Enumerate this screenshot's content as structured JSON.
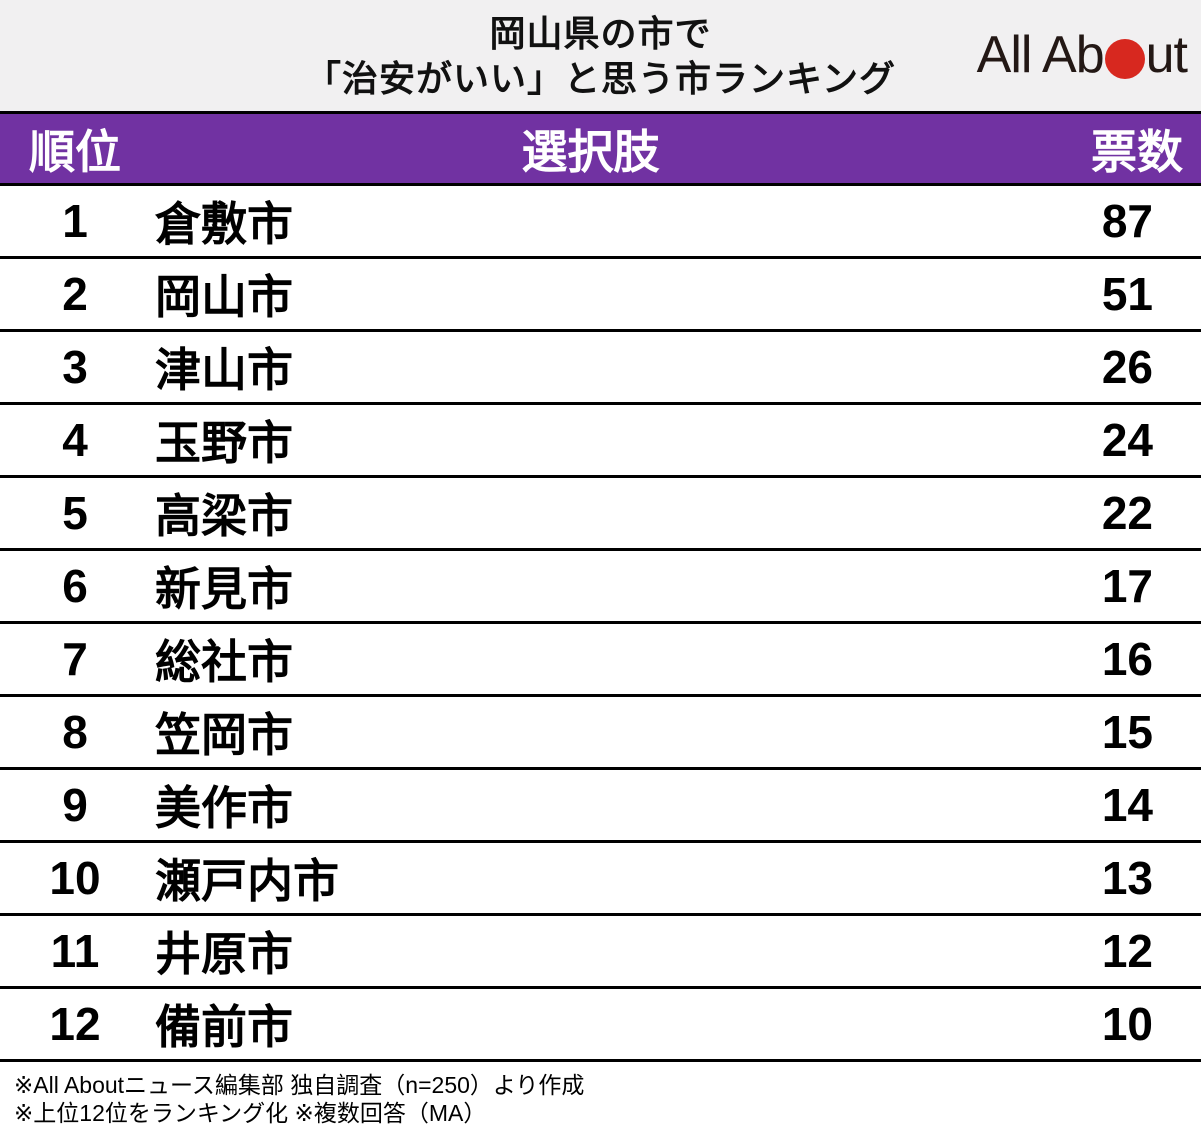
{
  "title": {
    "line1": "岡山県の市で",
    "line2": "「治安がいい」と思う市ランキング"
  },
  "logo": {
    "name": "All About",
    "part1": "All Ab",
    "part2": "ut",
    "dot_color": "#d7281f",
    "text_color": "#231815"
  },
  "table": {
    "headers": {
      "rank": "順位",
      "choice": "選択肢",
      "votes": "票数"
    },
    "header_bg_color": "#7132a2",
    "divider_color": "#000000",
    "rows": [
      {
        "rank": "1",
        "city": "倉敷市",
        "votes": "87"
      },
      {
        "rank": "2",
        "city": "岡山市",
        "votes": "51"
      },
      {
        "rank": "3",
        "city": "津山市",
        "votes": "26"
      },
      {
        "rank": "4",
        "city": "玉野市",
        "votes": "24"
      },
      {
        "rank": "5",
        "city": "高梁市",
        "votes": "22"
      },
      {
        "rank": "6",
        "city": "新見市",
        "votes": "17"
      },
      {
        "rank": "7",
        "city": "総社市",
        "votes": "16"
      },
      {
        "rank": "8",
        "city": "笠岡市",
        "votes": "15"
      },
      {
        "rank": "9",
        "city": "美作市",
        "votes": "14"
      },
      {
        "rank": "10",
        "city": "瀬戸内市",
        "votes": "13"
      },
      {
        "rank": "11",
        "city": "井原市",
        "votes": "12"
      },
      {
        "rank": "12",
        "city": "備前市",
        "votes": "10"
      }
    ]
  },
  "footer": {
    "line1": "※All Aboutニュース編集部 独自調査（n=250）より作成",
    "line2": "※上位12位をランキング化 ※複数回答（MA）"
  },
  "colors": {
    "title_bg": "#f1f0f1",
    "header_bg": "#7132a2",
    "row_bg": "#ffffff",
    "divider": "#000000",
    "logo_red": "#d7281f"
  },
  "chart_data": {
    "type": "table",
    "title": "岡山県の市で「治安がいい」と思う市ランキング",
    "columns": [
      "順位",
      "選択肢",
      "票数"
    ],
    "categories": [
      "倉敷市",
      "岡山市",
      "津山市",
      "玉野市",
      "高梁市",
      "新見市",
      "総社市",
      "笠岡市",
      "美作市",
      "瀬戸内市",
      "井原市",
      "備前市"
    ],
    "values": [
      87,
      51,
      26,
      24,
      22,
      17,
      16,
      15,
      14,
      13,
      12,
      10
    ],
    "source_note": "※All Aboutニュース編集部 独自調査（n=250）より作成 ※上位12位をランキング化 ※複数回答（MA）"
  }
}
